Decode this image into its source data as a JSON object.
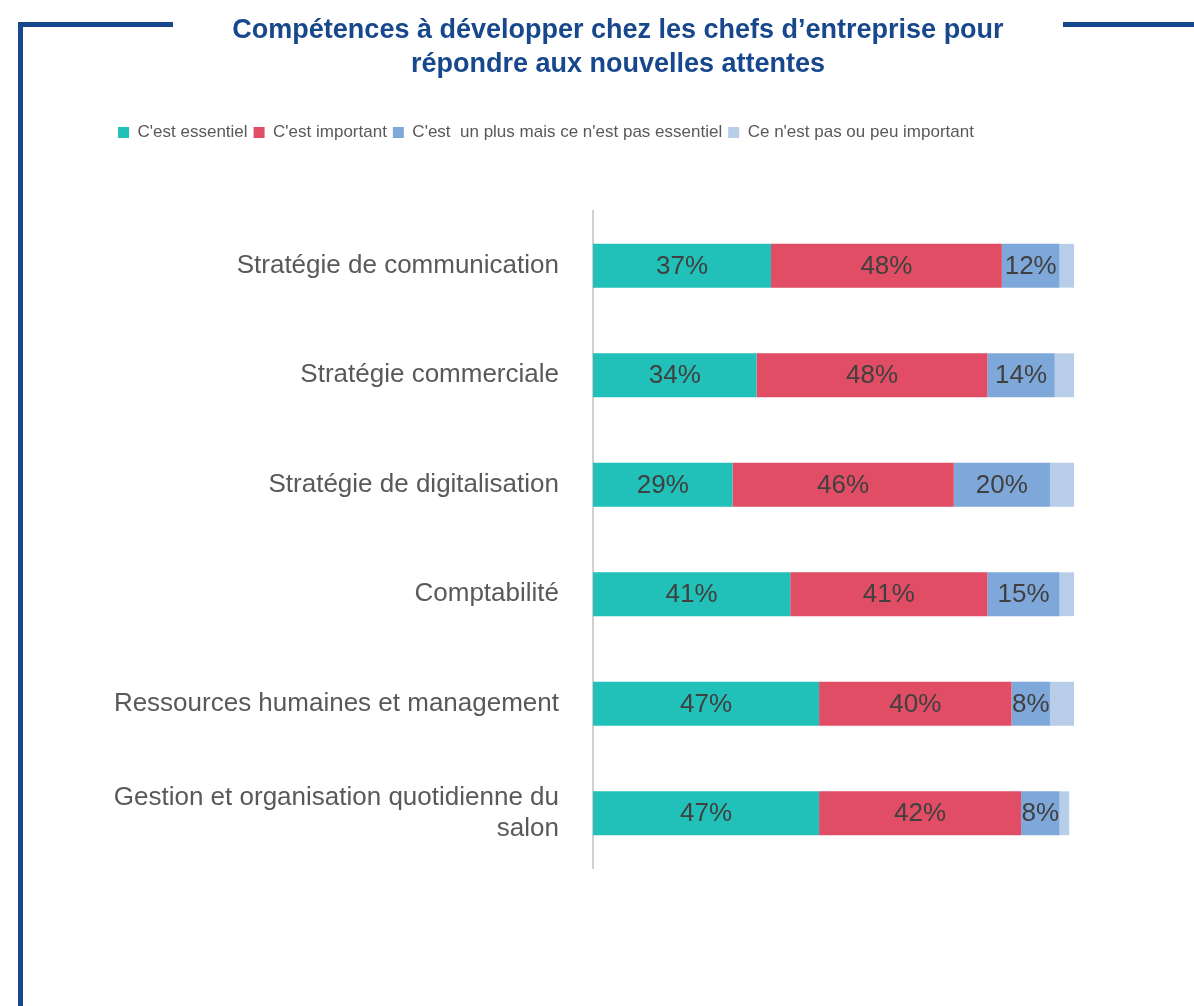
{
  "chart_data": {
    "type": "bar",
    "orientation": "horizontal",
    "stacked": true,
    "title": "Compétences à développer chez les chefs d’entreprise pour répondre aux nouvelles attentes",
    "legend": "top",
    "categories": [
      "Stratégie de communication",
      "Stratégie commerciale",
      "Stratégie de digitalisation",
      "Comptabilité",
      "Ressources humaines et management",
      "Gestion et organisation quotidienne du salon"
    ],
    "series": [
      {
        "name": "C'est essentiel",
        "color": "#21c0b8",
        "values": [
          37,
          34,
          29,
          41,
          47,
          47
        ],
        "value_labels": [
          "37%",
          "34%",
          "29%",
          "41%",
          "47%",
          "47%"
        ]
      },
      {
        "name": "C'est important",
        "color": "#e04d64",
        "values": [
          48,
          48,
          46,
          41,
          40,
          42
        ],
        "value_labels": [
          "48%",
          "48%",
          "46%",
          "41%",
          "40%",
          "42%"
        ]
      },
      {
        "name": "C'est  un plus mais ce n'est pas essentiel",
        "color": "#7fa8da",
        "values": [
          12,
          14,
          20,
          15,
          8,
          8
        ],
        "value_labels": [
          "12%",
          "14%",
          "20%",
          "15%",
          "8%",
          "8%"
        ]
      },
      {
        "name": "Ce n'est pas ou peu important",
        "color": "#b8cde8",
        "values": [
          3,
          4,
          5,
          3,
          5,
          2
        ]
      }
    ]
  }
}
